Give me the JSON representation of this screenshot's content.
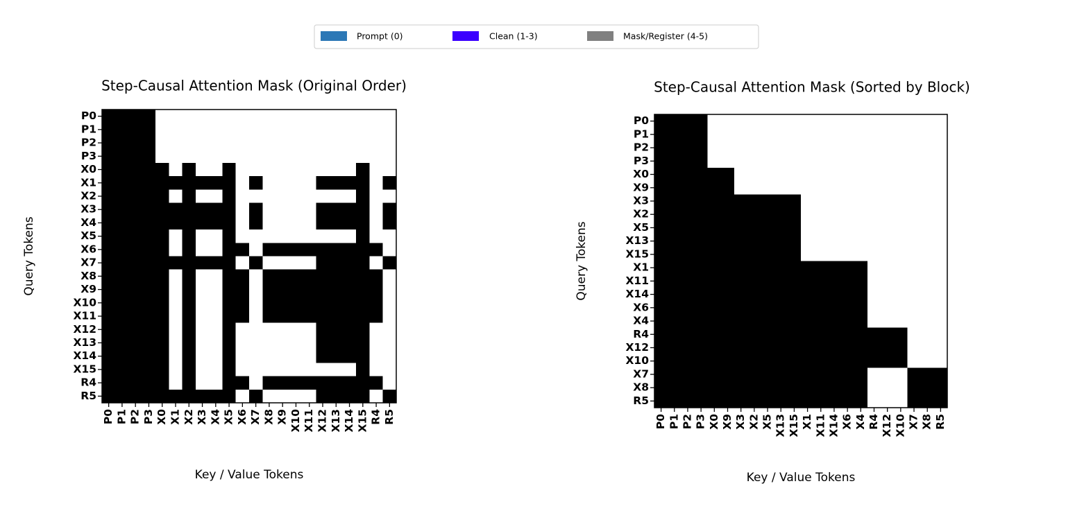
{
  "legend": [
    {
      "name": "Prompt (0)",
      "color": "#2c78b6"
    },
    {
      "name": "Clean (1-3)",
      "color": "#3b00ff"
    },
    {
      "name": "Mask/Register (4-5)",
      "color": "#808080"
    }
  ],
  "chart_data": [
    {
      "type": "heatmap",
      "title": "Step-Causal Attention Mask (Original Order)",
      "xlabel": "Key / Value Tokens",
      "ylabel": "Query Tokens",
      "colors": [
        "#ffffff",
        "#000000"
      ],
      "categories": [
        "P0",
        "P1",
        "P2",
        "P3",
        "X0",
        "X1",
        "X2",
        "X3",
        "X4",
        "X5",
        "X6",
        "X7",
        "X8",
        "X9",
        "X10",
        "X11",
        "X12",
        "X13",
        "X14",
        "X15",
        "R4",
        "R5"
      ],
      "category_colors": [
        "#2c78b6",
        "#2c78b6",
        "#2c78b6",
        "#2c78b6",
        "#3b00ff",
        "#808080",
        "#3b00ff",
        "#808080",
        "#808080",
        "#3b00ff",
        "#808080",
        "#808080",
        "#808080",
        "#808080",
        "#808080",
        "#808080",
        "#3b00ff",
        "#3b00ff",
        "#3b00ff",
        "#3b00ff",
        "#808080",
        "#808080"
      ],
      "values": [
        [
          1,
          1,
          1,
          1,
          0,
          0,
          0,
          0,
          0,
          0,
          0,
          0,
          0,
          0,
          0,
          0,
          0,
          0,
          0,
          0,
          0,
          0
        ],
        [
          1,
          1,
          1,
          1,
          0,
          0,
          0,
          0,
          0,
          0,
          0,
          0,
          0,
          0,
          0,
          0,
          0,
          0,
          0,
          0,
          0,
          0
        ],
        [
          1,
          1,
          1,
          1,
          0,
          0,
          0,
          0,
          0,
          0,
          0,
          0,
          0,
          0,
          0,
          0,
          0,
          0,
          0,
          0,
          0,
          0
        ],
        [
          1,
          1,
          1,
          1,
          0,
          0,
          0,
          0,
          0,
          0,
          0,
          0,
          0,
          0,
          0,
          0,
          0,
          0,
          0,
          0,
          0,
          0
        ],
        [
          1,
          1,
          1,
          1,
          1,
          0,
          1,
          0,
          0,
          1,
          0,
          0,
          0,
          0,
          0,
          0,
          0,
          0,
          0,
          1,
          0,
          0
        ],
        [
          1,
          1,
          1,
          1,
          1,
          1,
          1,
          1,
          1,
          1,
          0,
          1,
          0,
          0,
          0,
          0,
          1,
          1,
          1,
          1,
          0,
          1
        ],
        [
          1,
          1,
          1,
          1,
          1,
          0,
          1,
          0,
          0,
          1,
          0,
          0,
          0,
          0,
          0,
          0,
          0,
          0,
          0,
          1,
          0,
          0
        ],
        [
          1,
          1,
          1,
          1,
          1,
          1,
          1,
          1,
          1,
          1,
          0,
          1,
          0,
          0,
          0,
          0,
          1,
          1,
          1,
          1,
          0,
          1
        ],
        [
          1,
          1,
          1,
          1,
          1,
          1,
          1,
          1,
          1,
          1,
          0,
          1,
          0,
          0,
          0,
          0,
          1,
          1,
          1,
          1,
          0,
          1
        ],
        [
          1,
          1,
          1,
          1,
          1,
          0,
          1,
          0,
          0,
          1,
          0,
          0,
          0,
          0,
          0,
          0,
          0,
          0,
          0,
          1,
          0,
          0
        ],
        [
          1,
          1,
          1,
          1,
          1,
          0,
          1,
          0,
          0,
          1,
          1,
          0,
          1,
          1,
          1,
          1,
          1,
          1,
          1,
          1,
          1,
          0
        ],
        [
          1,
          1,
          1,
          1,
          1,
          1,
          1,
          1,
          1,
          1,
          0,
          1,
          0,
          0,
          0,
          0,
          1,
          1,
          1,
          1,
          0,
          1
        ],
        [
          1,
          1,
          1,
          1,
          1,
          0,
          1,
          0,
          0,
          1,
          1,
          0,
          1,
          1,
          1,
          1,
          1,
          1,
          1,
          1,
          1,
          0
        ],
        [
          1,
          1,
          1,
          1,
          1,
          0,
          1,
          0,
          0,
          1,
          1,
          0,
          1,
          1,
          1,
          1,
          1,
          1,
          1,
          1,
          1,
          0
        ],
        [
          1,
          1,
          1,
          1,
          1,
          0,
          1,
          0,
          0,
          1,
          1,
          0,
          1,
          1,
          1,
          1,
          1,
          1,
          1,
          1,
          1,
          0
        ],
        [
          1,
          1,
          1,
          1,
          1,
          0,
          1,
          0,
          0,
          1,
          1,
          0,
          1,
          1,
          1,
          1,
          1,
          1,
          1,
          1,
          1,
          0
        ],
        [
          1,
          1,
          1,
          1,
          1,
          0,
          1,
          0,
          0,
          1,
          0,
          0,
          0,
          0,
          0,
          0,
          1,
          1,
          1,
          1,
          0,
          0
        ],
        [
          1,
          1,
          1,
          1,
          1,
          0,
          1,
          0,
          0,
          1,
          0,
          0,
          0,
          0,
          0,
          0,
          1,
          1,
          1,
          1,
          0,
          0
        ],
        [
          1,
          1,
          1,
          1,
          1,
          0,
          1,
          0,
          0,
          1,
          0,
          0,
          0,
          0,
          0,
          0,
          1,
          1,
          1,
          1,
          0,
          0
        ],
        [
          1,
          1,
          1,
          1,
          1,
          0,
          1,
          0,
          0,
          1,
          0,
          0,
          0,
          0,
          0,
          0,
          0,
          0,
          0,
          1,
          0,
          0
        ],
        [
          1,
          1,
          1,
          1,
          1,
          0,
          1,
          0,
          0,
          1,
          1,
          0,
          1,
          1,
          1,
          1,
          1,
          1,
          1,
          1,
          1,
          0
        ],
        [
          1,
          1,
          1,
          1,
          1,
          1,
          1,
          1,
          1,
          1,
          0,
          1,
          0,
          0,
          0,
          0,
          1,
          1,
          1,
          1,
          0,
          1
        ]
      ]
    },
    {
      "type": "heatmap",
      "title": "Step-Causal Attention Mask (Sorted by Block)",
      "xlabel": "Key / Value Tokens",
      "ylabel": "Query Tokens",
      "colors": [
        "#ffffff",
        "#000000"
      ],
      "categories": [
        "P0",
        "P1",
        "P2",
        "P3",
        "X0",
        "X9",
        "X3",
        "X2",
        "X5",
        "X13",
        "X15",
        "X1",
        "X11",
        "X14",
        "X6",
        "X4",
        "R4",
        "X12",
        "X10",
        "X7",
        "X8",
        "R5"
      ],
      "category_colors": [
        "#2c78b6",
        "#2c78b6",
        "#2c78b6",
        "#2c78b6",
        "#3b00ff",
        "#3b00ff",
        "#3b00ff",
        "#3b00ff",
        "#3b00ff",
        "#3b00ff",
        "#3b00ff",
        "#3b00ff",
        "#3b00ff",
        "#3b00ff",
        "#3b00ff",
        "#3b00ff",
        "#808080",
        "#808080",
        "#808080",
        "#808080",
        "#808080",
        "#808080"
      ],
      "values": [
        [
          1,
          1,
          1,
          1,
          0,
          0,
          0,
          0,
          0,
          0,
          0,
          0,
          0,
          0,
          0,
          0,
          0,
          0,
          0,
          0,
          0,
          0
        ],
        [
          1,
          1,
          1,
          1,
          0,
          0,
          0,
          0,
          0,
          0,
          0,
          0,
          0,
          0,
          0,
          0,
          0,
          0,
          0,
          0,
          0,
          0
        ],
        [
          1,
          1,
          1,
          1,
          0,
          0,
          0,
          0,
          0,
          0,
          0,
          0,
          0,
          0,
          0,
          0,
          0,
          0,
          0,
          0,
          0,
          0
        ],
        [
          1,
          1,
          1,
          1,
          0,
          0,
          0,
          0,
          0,
          0,
          0,
          0,
          0,
          0,
          0,
          0,
          0,
          0,
          0,
          0,
          0,
          0
        ],
        [
          1,
          1,
          1,
          1,
          1,
          1,
          0,
          0,
          0,
          0,
          0,
          0,
          0,
          0,
          0,
          0,
          0,
          0,
          0,
          0,
          0,
          0
        ],
        [
          1,
          1,
          1,
          1,
          1,
          1,
          0,
          0,
          0,
          0,
          0,
          0,
          0,
          0,
          0,
          0,
          0,
          0,
          0,
          0,
          0,
          0
        ],
        [
          1,
          1,
          1,
          1,
          1,
          1,
          1,
          1,
          1,
          1,
          1,
          0,
          0,
          0,
          0,
          0,
          0,
          0,
          0,
          0,
          0,
          0
        ],
        [
          1,
          1,
          1,
          1,
          1,
          1,
          1,
          1,
          1,
          1,
          1,
          0,
          0,
          0,
          0,
          0,
          0,
          0,
          0,
          0,
          0,
          0
        ],
        [
          1,
          1,
          1,
          1,
          1,
          1,
          1,
          1,
          1,
          1,
          1,
          0,
          0,
          0,
          0,
          0,
          0,
          0,
          0,
          0,
          0,
          0
        ],
        [
          1,
          1,
          1,
          1,
          1,
          1,
          1,
          1,
          1,
          1,
          1,
          0,
          0,
          0,
          0,
          0,
          0,
          0,
          0,
          0,
          0,
          0
        ],
        [
          1,
          1,
          1,
          1,
          1,
          1,
          1,
          1,
          1,
          1,
          1,
          0,
          0,
          0,
          0,
          0,
          0,
          0,
          0,
          0,
          0,
          0
        ],
        [
          1,
          1,
          1,
          1,
          1,
          1,
          1,
          1,
          1,
          1,
          1,
          1,
          1,
          1,
          1,
          1,
          0,
          0,
          0,
          0,
          0,
          0
        ],
        [
          1,
          1,
          1,
          1,
          1,
          1,
          1,
          1,
          1,
          1,
          1,
          1,
          1,
          1,
          1,
          1,
          0,
          0,
          0,
          0,
          0,
          0
        ],
        [
          1,
          1,
          1,
          1,
          1,
          1,
          1,
          1,
          1,
          1,
          1,
          1,
          1,
          1,
          1,
          1,
          0,
          0,
          0,
          0,
          0,
          0
        ],
        [
          1,
          1,
          1,
          1,
          1,
          1,
          1,
          1,
          1,
          1,
          1,
          1,
          1,
          1,
          1,
          1,
          0,
          0,
          0,
          0,
          0,
          0
        ],
        [
          1,
          1,
          1,
          1,
          1,
          1,
          1,
          1,
          1,
          1,
          1,
          1,
          1,
          1,
          1,
          1,
          0,
          0,
          0,
          0,
          0,
          0
        ],
        [
          1,
          1,
          1,
          1,
          1,
          1,
          1,
          1,
          1,
          1,
          1,
          1,
          1,
          1,
          1,
          1,
          1,
          1,
          1,
          0,
          0,
          0
        ],
        [
          1,
          1,
          1,
          1,
          1,
          1,
          1,
          1,
          1,
          1,
          1,
          1,
          1,
          1,
          1,
          1,
          1,
          1,
          1,
          0,
          0,
          0
        ],
        [
          1,
          1,
          1,
          1,
          1,
          1,
          1,
          1,
          1,
          1,
          1,
          1,
          1,
          1,
          1,
          1,
          1,
          1,
          1,
          0,
          0,
          0
        ],
        [
          1,
          1,
          1,
          1,
          1,
          1,
          1,
          1,
          1,
          1,
          1,
          1,
          1,
          1,
          1,
          1,
          0,
          0,
          0,
          1,
          1,
          1
        ],
        [
          1,
          1,
          1,
          1,
          1,
          1,
          1,
          1,
          1,
          1,
          1,
          1,
          1,
          1,
          1,
          1,
          0,
          0,
          0,
          1,
          1,
          1
        ],
        [
          1,
          1,
          1,
          1,
          1,
          1,
          1,
          1,
          1,
          1,
          1,
          1,
          1,
          1,
          1,
          1,
          0,
          0,
          0,
          1,
          1,
          1
        ]
      ]
    }
  ]
}
